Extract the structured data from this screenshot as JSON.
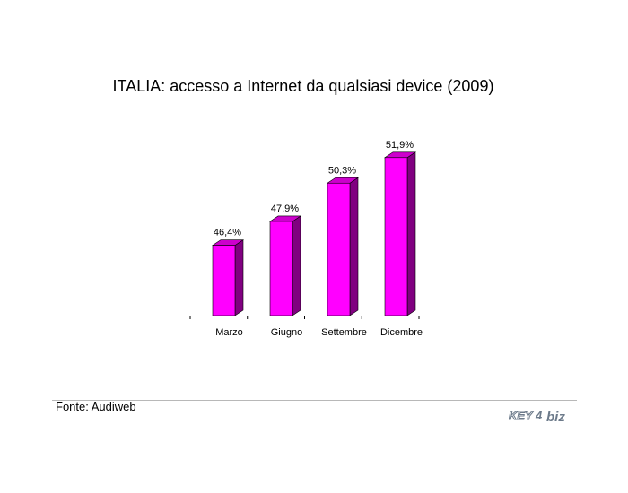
{
  "title": "ITALIA: accesso a Internet da qualsiasi device (2009)",
  "source": "Fonte: Audiweb",
  "logo": {
    "text_left": "KEY",
    "text_right": "biz",
    "mark": "4"
  },
  "colors": {
    "bar_front": "#ff00ff",
    "bar_top": "#cc00cc",
    "bar_side": "#800080",
    "axis": "#000000"
  },
  "chart_data": {
    "type": "bar",
    "title": "ITALIA: accesso a Internet da qualsiasi device (2009)",
    "categories": [
      "Marzo",
      "Giugno",
      "Settembre",
      "Dicembre"
    ],
    "values": [
      46.4,
      47.9,
      50.3,
      51.9
    ],
    "data_labels": [
      "46,4%",
      "47,9%",
      "50,3%",
      "51,9%"
    ],
    "xlabel": "",
    "ylabel": "",
    "ylim": [
      42,
      52
    ],
    "grid": false,
    "legend": "none",
    "three_d": true
  }
}
